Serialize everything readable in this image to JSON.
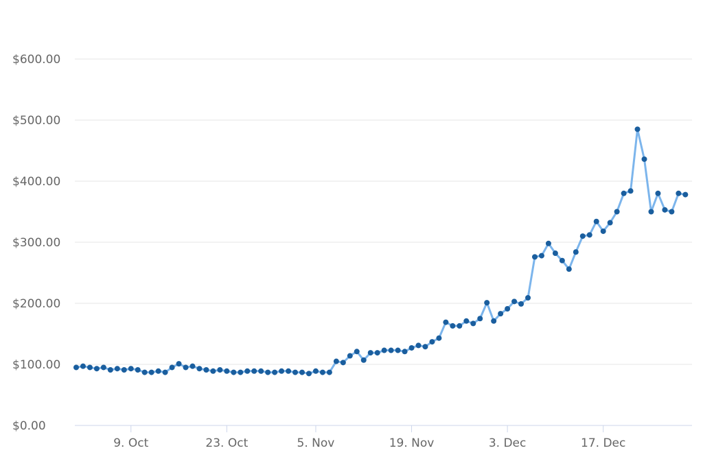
{
  "chart_data": {
    "type": "line",
    "title": "",
    "xlabel": "",
    "ylabel": "",
    "x_start": "2017-10-01",
    "x_tick_labels": [
      "9. Oct",
      "23. Oct",
      "5. Nov",
      "19. Nov",
      "3. Dec",
      "17. Dec"
    ],
    "x_tick_dates": [
      "2017-10-09",
      "2017-10-23",
      "2017-11-05",
      "2017-11-19",
      "2017-12-03",
      "2017-12-17"
    ],
    "y_tick_labels": [
      "$0.00",
      "$100.00",
      "$200.00",
      "$300.00",
      "$400.00",
      "$500.00",
      "$600.00"
    ],
    "ylim": [
      0,
      600
    ],
    "grid": true,
    "legend": "none",
    "colors": {
      "line": "#7cb5ec",
      "marker": "#1a5e9e",
      "grid": "#e6e6e6",
      "axis": "#ccd6eb",
      "label": "#666666"
    },
    "series": [
      {
        "values": [
          95,
          97,
          95,
          93,
          95,
          91,
          93,
          91,
          93,
          91,
          87,
          87,
          89,
          87,
          95,
          101,
          95,
          97,
          93,
          91,
          89,
          91,
          89,
          87,
          87,
          89,
          89,
          89,
          87,
          87,
          89,
          89,
          87,
          87,
          85,
          89,
          87,
          87,
          105,
          103,
          114,
          121,
          107,
          119,
          119,
          123,
          123,
          123,
          121,
          127,
          131,
          129,
          137,
          143,
          169,
          163,
          163,
          171,
          167,
          175,
          201,
          171,
          183,
          191,
          203,
          199,
          209,
          276,
          278,
          298,
          282,
          270,
          256,
          284,
          310,
          312,
          334,
          318,
          332,
          350,
          380,
          384,
          485,
          436,
          350,
          380,
          353,
          350,
          380,
          378
        ]
      }
    ]
  }
}
